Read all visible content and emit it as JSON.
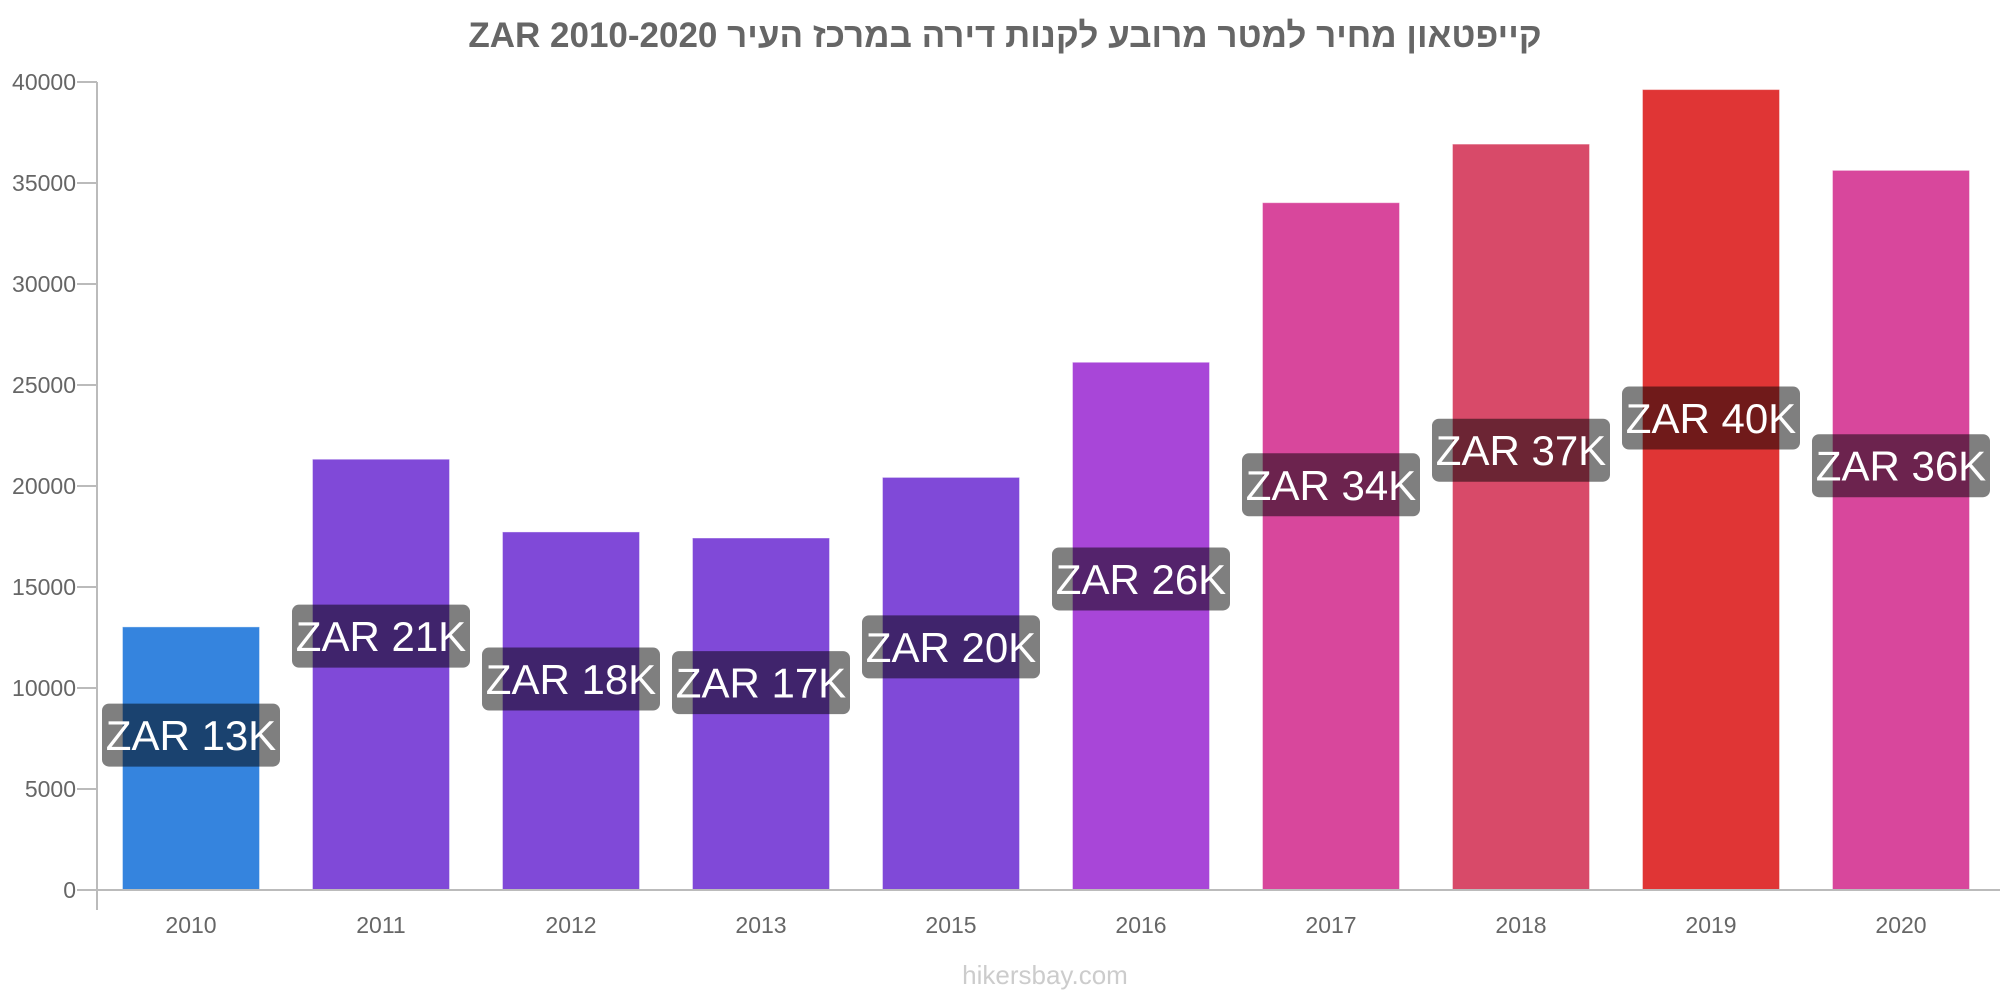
{
  "chart_data": {
    "type": "bar",
    "title": "קייפטאון מחיר למטר מרובע לקנות דירה במרכז העיר ZAR 2010-2020",
    "xlabel": "",
    "ylabel": "",
    "ylim": [
      0,
      40000
    ],
    "yticks": [
      0,
      5000,
      10000,
      15000,
      20000,
      25000,
      30000,
      35000,
      40000
    ],
    "categories": [
      "2010",
      "2011",
      "2012",
      "2013",
      "2015",
      "2016",
      "2017",
      "2018",
      "2019",
      "2020"
    ],
    "values": [
      13000,
      21300,
      17700,
      17400,
      20400,
      26100,
      34000,
      36900,
      39600,
      35600
    ],
    "data_labels": [
      "ZAR 13K",
      "ZAR 21K",
      "ZAR 18K",
      "ZAR 17K",
      "ZAR 20K",
      "ZAR 26K",
      "ZAR 34K",
      "ZAR 37K",
      "ZAR 40K",
      "ZAR 36K"
    ],
    "colors": [
      "#3584DE",
      "#8049D8",
      "#8049D8",
      "#8049D8",
      "#8049D8",
      "#A846D8",
      "#D8479C",
      "#D84A69",
      "#E03535",
      "#D8479C"
    ],
    "grid": false,
    "legend": "none"
  },
  "footer": "hikersbay.com"
}
